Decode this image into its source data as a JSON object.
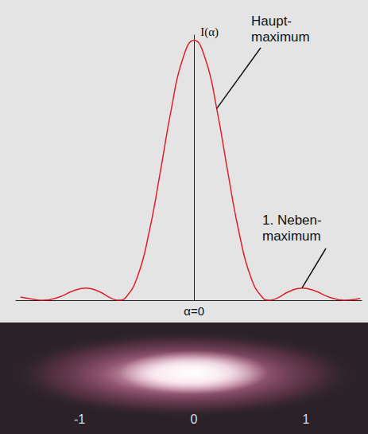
{
  "chart_data": {
    "type": "line",
    "x": [
      -2.3,
      -2.1,
      -2.0,
      -1.8,
      -1.6,
      -1.43,
      -1.25,
      -1.1,
      -1.0,
      -0.9,
      -0.75,
      -0.6,
      -0.45,
      -0.3,
      -0.15,
      0,
      0.15,
      0.3,
      0.45,
      0.6,
      0.75,
      0.9,
      1.0,
      1.1,
      1.25,
      1.43,
      1.6,
      1.8,
      2.0,
      2.1,
      2.2
    ],
    "values": [
      0.0125,
      0.0022,
      0,
      0.011,
      0.036,
      0.047,
      0.032,
      0.008,
      0,
      0.012,
      0.09,
      0.255,
      0.488,
      0.737,
      0.928,
      1,
      0.928,
      0.737,
      0.488,
      0.255,
      0.09,
      0.012,
      0,
      0.008,
      0.032,
      0.047,
      0.036,
      0.011,
      0,
      0.0022,
      0.0072
    ],
    "color": "#e0202a",
    "xlim": [
      -2.36,
      2.22
    ],
    "ylim": [
      0,
      1.02
    ],
    "xticks": [
      {
        "value": 0,
        "label": "α=0"
      }
    ],
    "yticks": [],
    "ylabel": "I(α)",
    "tick_labels": "x",
    "grid": false,
    "annotations": [
      {
        "text": "Haupt-\nmaximum",
        "x": 0.3,
        "y": 0.737
      },
      {
        "text": "1. Neben-\nmaximum",
        "x": 1.43,
        "y": 0.047
      }
    ],
    "pattern_labels": [
      "-1",
      "0",
      "1"
    ]
  }
}
